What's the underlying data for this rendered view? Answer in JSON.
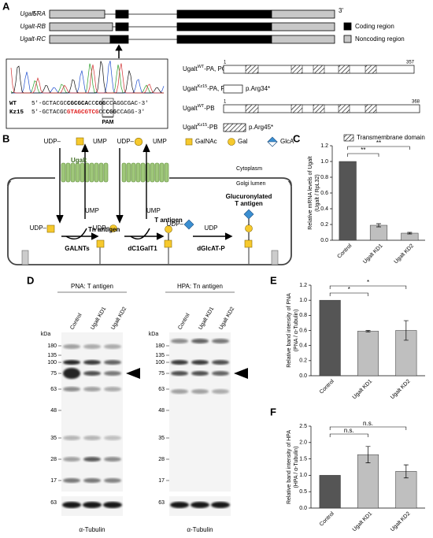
{
  "panel_labels": [
    "A",
    "B",
    "C",
    "D",
    "E",
    "F"
  ],
  "panel_a": {
    "transcripts": [
      "Ugalt-RA",
      "Ugalt-RB",
      "Ugalt-RC"
    ],
    "five_prime": "5'",
    "three_prime": "3'",
    "legend": [
      "Coding region",
      "Noncoding region"
    ],
    "wt": {
      "label": "WT",
      "parts": [
        "5'-GCTACGC",
        "CGCGCA",
        "CC",
        "CGG",
        "CCAGGCGAC-3'"
      ]
    },
    "mutant": {
      "label": "Kz15",
      "parts": [
        "5'-GCTACGC",
        "GTAGCGTCG",
        "CC",
        "CGG",
        "CCAGG-3'"
      ]
    },
    "pam": "PAM",
    "isoforms": [
      {
        "name": "Ugalt",
        "sup": "WT",
        "suffix": "-PA, PC",
        "start": 1,
        "end": 357
      },
      {
        "name": "Ugalt",
        "sup": "Kz15",
        "suffix": "-PA, PC",
        "mutation": "p.Arg34*"
      },
      {
        "name": "Ugalt",
        "sup": "WT",
        "suffix": "-PB",
        "start": 1,
        "end": 368
      },
      {
        "name": "Ugalt",
        "sup": "Kz15",
        "suffix": "-PB",
        "mutation": "p.Arg45*"
      }
    ],
    "tm_legend": "Transmembrane domain"
  },
  "panel_b": {
    "udp": "UDP",
    "ump": "UMP",
    "udp_dash": "UDP–",
    "sugars": [
      "GalNAc",
      "Gal",
      "GlcA"
    ],
    "transporter": "Ugalt",
    "cytoplasm": "Cytoplasm",
    "lumen": "Golgi lumen",
    "products": [
      "Tn antigen",
      "T antigen",
      "Glucuronylated",
      "T antigen"
    ],
    "enzymes": [
      "GALNTs",
      "dC1GalT1",
      "dGlcAT-P"
    ]
  },
  "panel_d": {
    "blots": [
      {
        "title": "PNA: T antigen",
        "lanes": [
          "Control",
          "Ugalt KD1",
          "Ugalt KD2"
        ],
        "loading": "α-Tubulin"
      },
      {
        "title": "HPA: Tn antigen",
        "lanes": [
          "Control",
          "Ugalt KD1",
          "Ugalt KD2"
        ],
        "loading": "α-Tubulin"
      }
    ],
    "kda": "kDa",
    "markers": [
      180,
      135,
      100,
      75,
      63,
      48,
      35,
      28,
      17
    ],
    "loading_marker": 63
  },
  "chart_data": [
    {
      "type": "bar",
      "y_label": [
        "Relative mRNA levels of Ugalt",
        "(Ugalt / RpL32)"
      ],
      "categories": [
        "Control",
        "Ugalt KD1",
        "Ugalt KD2"
      ],
      "values": [
        1.0,
        0.19,
        0.09
      ],
      "errors": [
        null,
        0.02,
        0.01
      ],
      "colors": [
        "#555555",
        "#bfbfbf",
        "#bfbfbf"
      ],
      "ylim": [
        0,
        1.2
      ],
      "yticks": [
        {
          "value": 0,
          "label": "0.0"
        },
        0.2,
        0.4,
        0.6,
        0.8,
        {
          "value": 1,
          "label": "1.0"
        },
        1.2
      ],
      "significance": [
        "**",
        "**"
      ]
    },
    {
      "type": "bar",
      "y_label": [
        "Relative band intensity of PNA",
        "(PNA / α-Tubulin)"
      ],
      "categories": [
        "Control",
        "Ugalt KD1",
        "Ugalt KD2"
      ],
      "values": [
        1.0,
        0.59,
        0.6
      ],
      "errors": [
        null,
        0.01,
        0.13
      ],
      "colors": [
        "#555555",
        "#bfbfbf",
        "#bfbfbf"
      ],
      "ylim": [
        0,
        1.2
      ],
      "yticks": [
        {
          "value": 0,
          "label": "0.0"
        },
        0.2,
        0.4,
        0.6,
        0.8,
        {
          "value": 1,
          "label": "1.0"
        },
        1.2
      ],
      "significance": [
        "*",
        "*"
      ]
    },
    {
      "type": "bar",
      "y_label": [
        "Relative band intensity of HPA",
        "(HPA / α-Tubulin)"
      ],
      "categories": [
        "Control",
        "Ugalt KD1",
        "Ugalt KD2"
      ],
      "values": [
        1.0,
        1.63,
        1.12
      ],
      "errors": [
        null,
        0.25,
        0.2
      ],
      "colors": [
        "#555555",
        "#bfbfbf",
        "#bfbfbf"
      ],
      "ylim": [
        0,
        2.5
      ],
      "yticks": [
        {
          "value": 0,
          "label": "0.0"
        },
        0.5,
        {
          "value": 1,
          "label": "1.0"
        },
        1.5,
        {
          "value": 2,
          "label": "2.0"
        },
        2.5
      ],
      "significance": [
        "n.s.",
        "n.s."
      ]
    }
  ]
}
